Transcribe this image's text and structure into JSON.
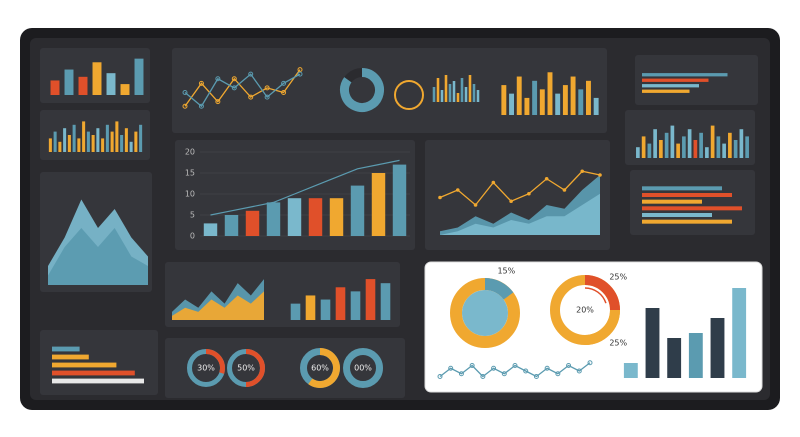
{
  "chart_data": [
    {
      "type": "bar",
      "values": [
        4,
        7,
        5,
        9,
        6,
        3,
        10
      ],
      "colors": [
        "#e0502a",
        "#5b9bb0",
        "#e0502a",
        "#f0a830",
        "#7ab8cc",
        "#f0a830",
        "#5b9bb0"
      ],
      "ylim": [
        0,
        11
      ]
    },
    {
      "type": "bar",
      "values": [
        4,
        6,
        3,
        7,
        5,
        8,
        4,
        9,
        6,
        5,
        7,
        4,
        8,
        6,
        9,
        5,
        7,
        3,
        6,
        8
      ],
      "colors": [
        "#f0a830",
        "#5b9bb0",
        "#f0a830",
        "#7ab8cc",
        "#f0a830",
        "#5b9bb0",
        "#f0a830",
        "#f0a830",
        "#5b9bb0",
        "#f0a830",
        "#7ab8cc",
        "#f0a830",
        "#5b9bb0",
        "#f0a830",
        "#f0a830",
        "#5b9bb0",
        "#f0a830",
        "#7ab8cc",
        "#f0a830",
        "#5b9bb0"
      ],
      "ylim": [
        0,
        10
      ]
    },
    {
      "type": "line",
      "series": [
        {
          "color": "#f0a830",
          "values": [
            3,
            8,
            4,
            9,
            5,
            7,
            6,
            11
          ]
        },
        {
          "color": "#5b9bb0",
          "values": [
            6,
            3,
            9,
            7,
            10,
            5,
            8,
            10
          ]
        }
      ],
      "ylim": [
        0,
        12
      ]
    },
    {
      "type": "gauge",
      "values": [
        85
      ],
      "colors": [
        "#5b9bb0"
      ],
      "track": "#2b2b2f",
      "thickness": 9
    },
    {
      "type": "gauge",
      "values": [
        100
      ],
      "colors": [
        "#f0a830"
      ],
      "track": "#2b2b2f",
      "thickness": 2
    },
    {
      "type": "bar",
      "values": [
        5,
        8,
        4,
        9,
        6,
        7,
        3,
        8,
        5,
        9,
        6,
        4
      ],
      "colors": [
        "#5b9bb0",
        "#f0a830",
        "#7ab8cc",
        "#f0a830",
        "#5b9bb0",
        "#7ab8cc",
        "#f0a830",
        "#5b9bb0",
        "#7ab8cc",
        "#f0a830",
        "#5b9bb0",
        "#7ab8cc"
      ],
      "ylim": [
        0,
        10
      ]
    },
    {
      "type": "bar",
      "values": [
        7,
        5,
        9,
        4,
        8,
        6,
        10,
        5,
        7,
        9,
        6,
        8,
        4
      ],
      "colors": [
        "#f0a830",
        "#7ab8cc",
        "#f0a830",
        "#f0a830",
        "#5b9bb0",
        "#f0a830",
        "#f0a830",
        "#7ab8cc",
        "#f0a830",
        "#f0a830",
        "#5b9bb0",
        "#f0a830",
        "#7ab8cc"
      ],
      "ylim": [
        0,
        11
      ]
    },
    {
      "type": "bar",
      "values": [
        3,
        5,
        6,
        8,
        9,
        9,
        9,
        12,
        15,
        17
      ],
      "colors": [
        "#7ab8cc",
        "#5b9bb0",
        "#e0502a",
        "#5b9bb0",
        "#7ab8cc",
        "#e0502a",
        "#f0a830",
        "#5b9bb0",
        "#f0a830",
        "#5b9bb0"
      ],
      "trend": [
        5,
        6,
        7,
        8,
        10,
        12,
        14,
        16,
        17,
        18
      ],
      "trend_color": "#5b9bb0",
      "ylim": [
        0,
        20
      ],
      "yticks": [
        0,
        5,
        10,
        15,
        20
      ]
    },
    {
      "type": "area",
      "series": [
        {
          "color": "#5b9bb0",
          "values": [
            1,
            2,
            5,
            3,
            6,
            4,
            8,
            7,
            12,
            16
          ]
        },
        {
          "color": "#7ab8cc",
          "values": [
            0,
            1,
            3,
            2,
            4,
            3,
            5,
            5,
            8,
            11
          ]
        }
      ],
      "line": {
        "color": "#f0a830",
        "values": [
          10,
          12,
          8,
          14,
          9,
          11,
          15,
          12,
          17,
          16
        ]
      },
      "ylim": [
        0,
        20
      ]
    },
    {
      "type": "hbar",
      "values": [
        9,
        7,
        6,
        5
      ],
      "colors": [
        "#5b9bb0",
        "#e0502a",
        "#7ab8cc",
        "#f0a830"
      ],
      "xlim": [
        0,
        10
      ]
    },
    {
      "type": "bar",
      "values": [
        3,
        6,
        4,
        8,
        5,
        7,
        9,
        4,
        6,
        8,
        5,
        7,
        3,
        9,
        6,
        4,
        7,
        5,
        8,
        6
      ],
      "colors": [
        "#7ab8cc",
        "#f0a830",
        "#5b9bb0",
        "#7ab8cc",
        "#f0a830",
        "#5b9bb0",
        "#7ab8cc",
        "#f0a830",
        "#5b9bb0",
        "#7ab8cc",
        "#e0502a",
        "#5b9bb0",
        "#7ab8cc",
        "#f0a830",
        "#5b9bb0",
        "#7ab8cc",
        "#f0a830",
        "#5b9bb0",
        "#7ab8cc",
        "#5b9bb0"
      ],
      "ylim": [
        0,
        10
      ]
    },
    {
      "type": "hbar",
      "values": [
        8,
        9,
        6,
        10,
        7,
        9
      ],
      "colors": [
        "#5b9bb0",
        "#e0502a",
        "#f0a830",
        "#e0502a",
        "#7ab8cc",
        "#f0a830"
      ],
      "xlim": [
        0,
        10
      ]
    },
    {
      "type": "area",
      "series": [
        {
          "color": "#7ab8cc",
          "values": [
            2,
            5,
            9,
            6,
            8,
            5,
            3
          ]
        },
        {
          "color": "#5b9bb0",
          "values": [
            1,
            4,
            6,
            4,
            6,
            3,
            2
          ]
        }
      ],
      "ylim": [
        0,
        10
      ]
    },
    {
      "type": "area",
      "series": [
        {
          "color": "#5b9bb0",
          "values": [
            2,
            5,
            3,
            7,
            4,
            9,
            6,
            10
          ]
        },
        {
          "color": "#f0a830",
          "values": [
            1,
            3,
            2,
            5,
            3,
            6,
            4,
            7
          ]
        }
      ],
      "ylim": [
        0,
        11
      ]
    },
    {
      "type": "bar",
      "values": [
        4,
        6,
        5,
        8,
        7,
        10,
        9
      ],
      "colors": [
        "#5b9bb0",
        "#f0a830",
        "#5b9bb0",
        "#e0502a",
        "#5b9bb0",
        "#e0502a",
        "#5b9bb0"
      ],
      "ylim": [
        0,
        11
      ]
    },
    {
      "type": "hbar",
      "values": [
        3,
        4,
        7,
        9,
        10
      ],
      "colors": [
        "#5b9bb0",
        "#f0a830",
        "#f0a830",
        "#e0502a",
        "#e8e8e8"
      ],
      "xlim": [
        0,
        10
      ]
    },
    {
      "type": "gauge",
      "values": [
        30
      ],
      "value_labels": [
        "30%"
      ],
      "colors": [
        "#e0502a"
      ],
      "track": "#5b9bb0",
      "thickness": 5,
      "label_position": "center"
    },
    {
      "type": "gauge",
      "values": [
        50
      ],
      "value_labels": [
        "50%"
      ],
      "colors": [
        "#e0502a"
      ],
      "track": "#5b9bb0",
      "thickness": 5,
      "label_position": "center"
    },
    {
      "type": "gauge",
      "values": [
        60
      ],
      "value_labels": [
        "60%"
      ],
      "colors": [
        "#f0a830"
      ],
      "track": "#5b9bb0",
      "thickness": 7,
      "label_position": "center"
    },
    {
      "type": "gauge",
      "values": [
        0
      ],
      "value_labels": [
        "00%"
      ],
      "colors": [
        "#e0502a"
      ],
      "track": "#5b9bb0",
      "thickness": 7,
      "label_position": "center"
    },
    {
      "type": "gauge",
      "values": [
        15
      ],
      "value_labels": [
        "15%"
      ],
      "colors": [
        "#5b9bb0"
      ],
      "track": "#f0a830",
      "thickness": 12,
      "label_position": "outside",
      "fill": "#7ab8cc"
    },
    {
      "type": "gauge",
      "values": [
        25,
        25
      ],
      "value_labels": [
        "25%",
        "25%"
      ],
      "colors": [
        "#e0502a",
        "#f0a830"
      ],
      "track": "#f0a830",
      "thickness": 10,
      "label_position": "outside",
      "center_value": 20,
      "center_label": "20%"
    },
    {
      "type": "line",
      "series": [
        {
          "color": "#5b9bb0",
          "values": [
            2,
            5,
            3,
            6,
            2,
            5,
            3,
            6,
            4,
            2,
            5,
            3,
            6,
            4,
            7
          ]
        }
      ],
      "ylim": [
        0,
        8
      ]
    },
    {
      "type": "bar",
      "values": [
        3,
        14,
        8,
        9,
        12,
        18
      ],
      "colors": [
        "#7ab8cc",
        "#2f3d4a",
        "#2f3d4a",
        "#5b9bb0",
        "#2f3d4a",
        "#7ab8cc"
      ],
      "ylim": [
        0,
        20
      ]
    }
  ]
}
